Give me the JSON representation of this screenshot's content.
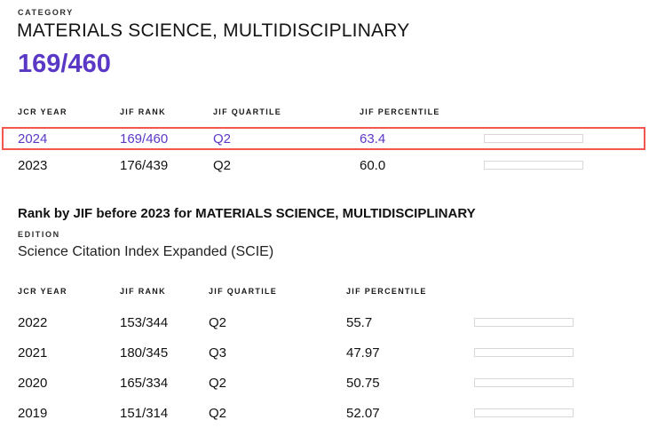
{
  "colors": {
    "accent_purple": "#5a38c6",
    "highlight_red": "#f4554e",
    "bar_fill_gray": "#d9d9d9",
    "bar_border": "#d8d8d8"
  },
  "category": {
    "label": "CATEGORY",
    "name": "MATERIALS SCIENCE, MULTIDISCIPLINARY",
    "current_rank": "169/460"
  },
  "recent_table": {
    "headers": [
      "JCR YEAR",
      "JIF RANK",
      "JIF QUARTILE",
      "JIF PERCENTILE"
    ],
    "rows": [
      {
        "year": "2024",
        "rank": "169/460",
        "quartile": "Q2",
        "percentile": "63.4",
        "highlighted": true
      },
      {
        "year": "2023",
        "rank": "176/439",
        "quartile": "Q2",
        "percentile": "60.0",
        "highlighted": false
      }
    ]
  },
  "before_2023": {
    "heading": "Rank by JIF before 2023 for MATERIALS SCIENCE, MULTIDISCIPLINARY",
    "edition_label": "EDITION",
    "edition": "Science Citation Index Expanded (SCIE)",
    "table": {
      "headers": [
        "JCR YEAR",
        "JIF RANK",
        "JIF QUARTILE",
        "JIF PERCENTILE"
      ],
      "rows": [
        {
          "year": "2022",
          "rank": "153/344",
          "quartile": "Q2",
          "percentile": "55.7",
          "highlighted": false
        },
        {
          "year": "2021",
          "rank": "180/345",
          "quartile": "Q3",
          "percentile": "47.97",
          "highlighted": false
        },
        {
          "year": "2020",
          "rank": "165/334",
          "quartile": "Q2",
          "percentile": "50.75",
          "highlighted": false
        },
        {
          "year": "2019",
          "rank": "151/314",
          "quartile": "Q2",
          "percentile": "52.07",
          "highlighted": false
        }
      ]
    }
  }
}
